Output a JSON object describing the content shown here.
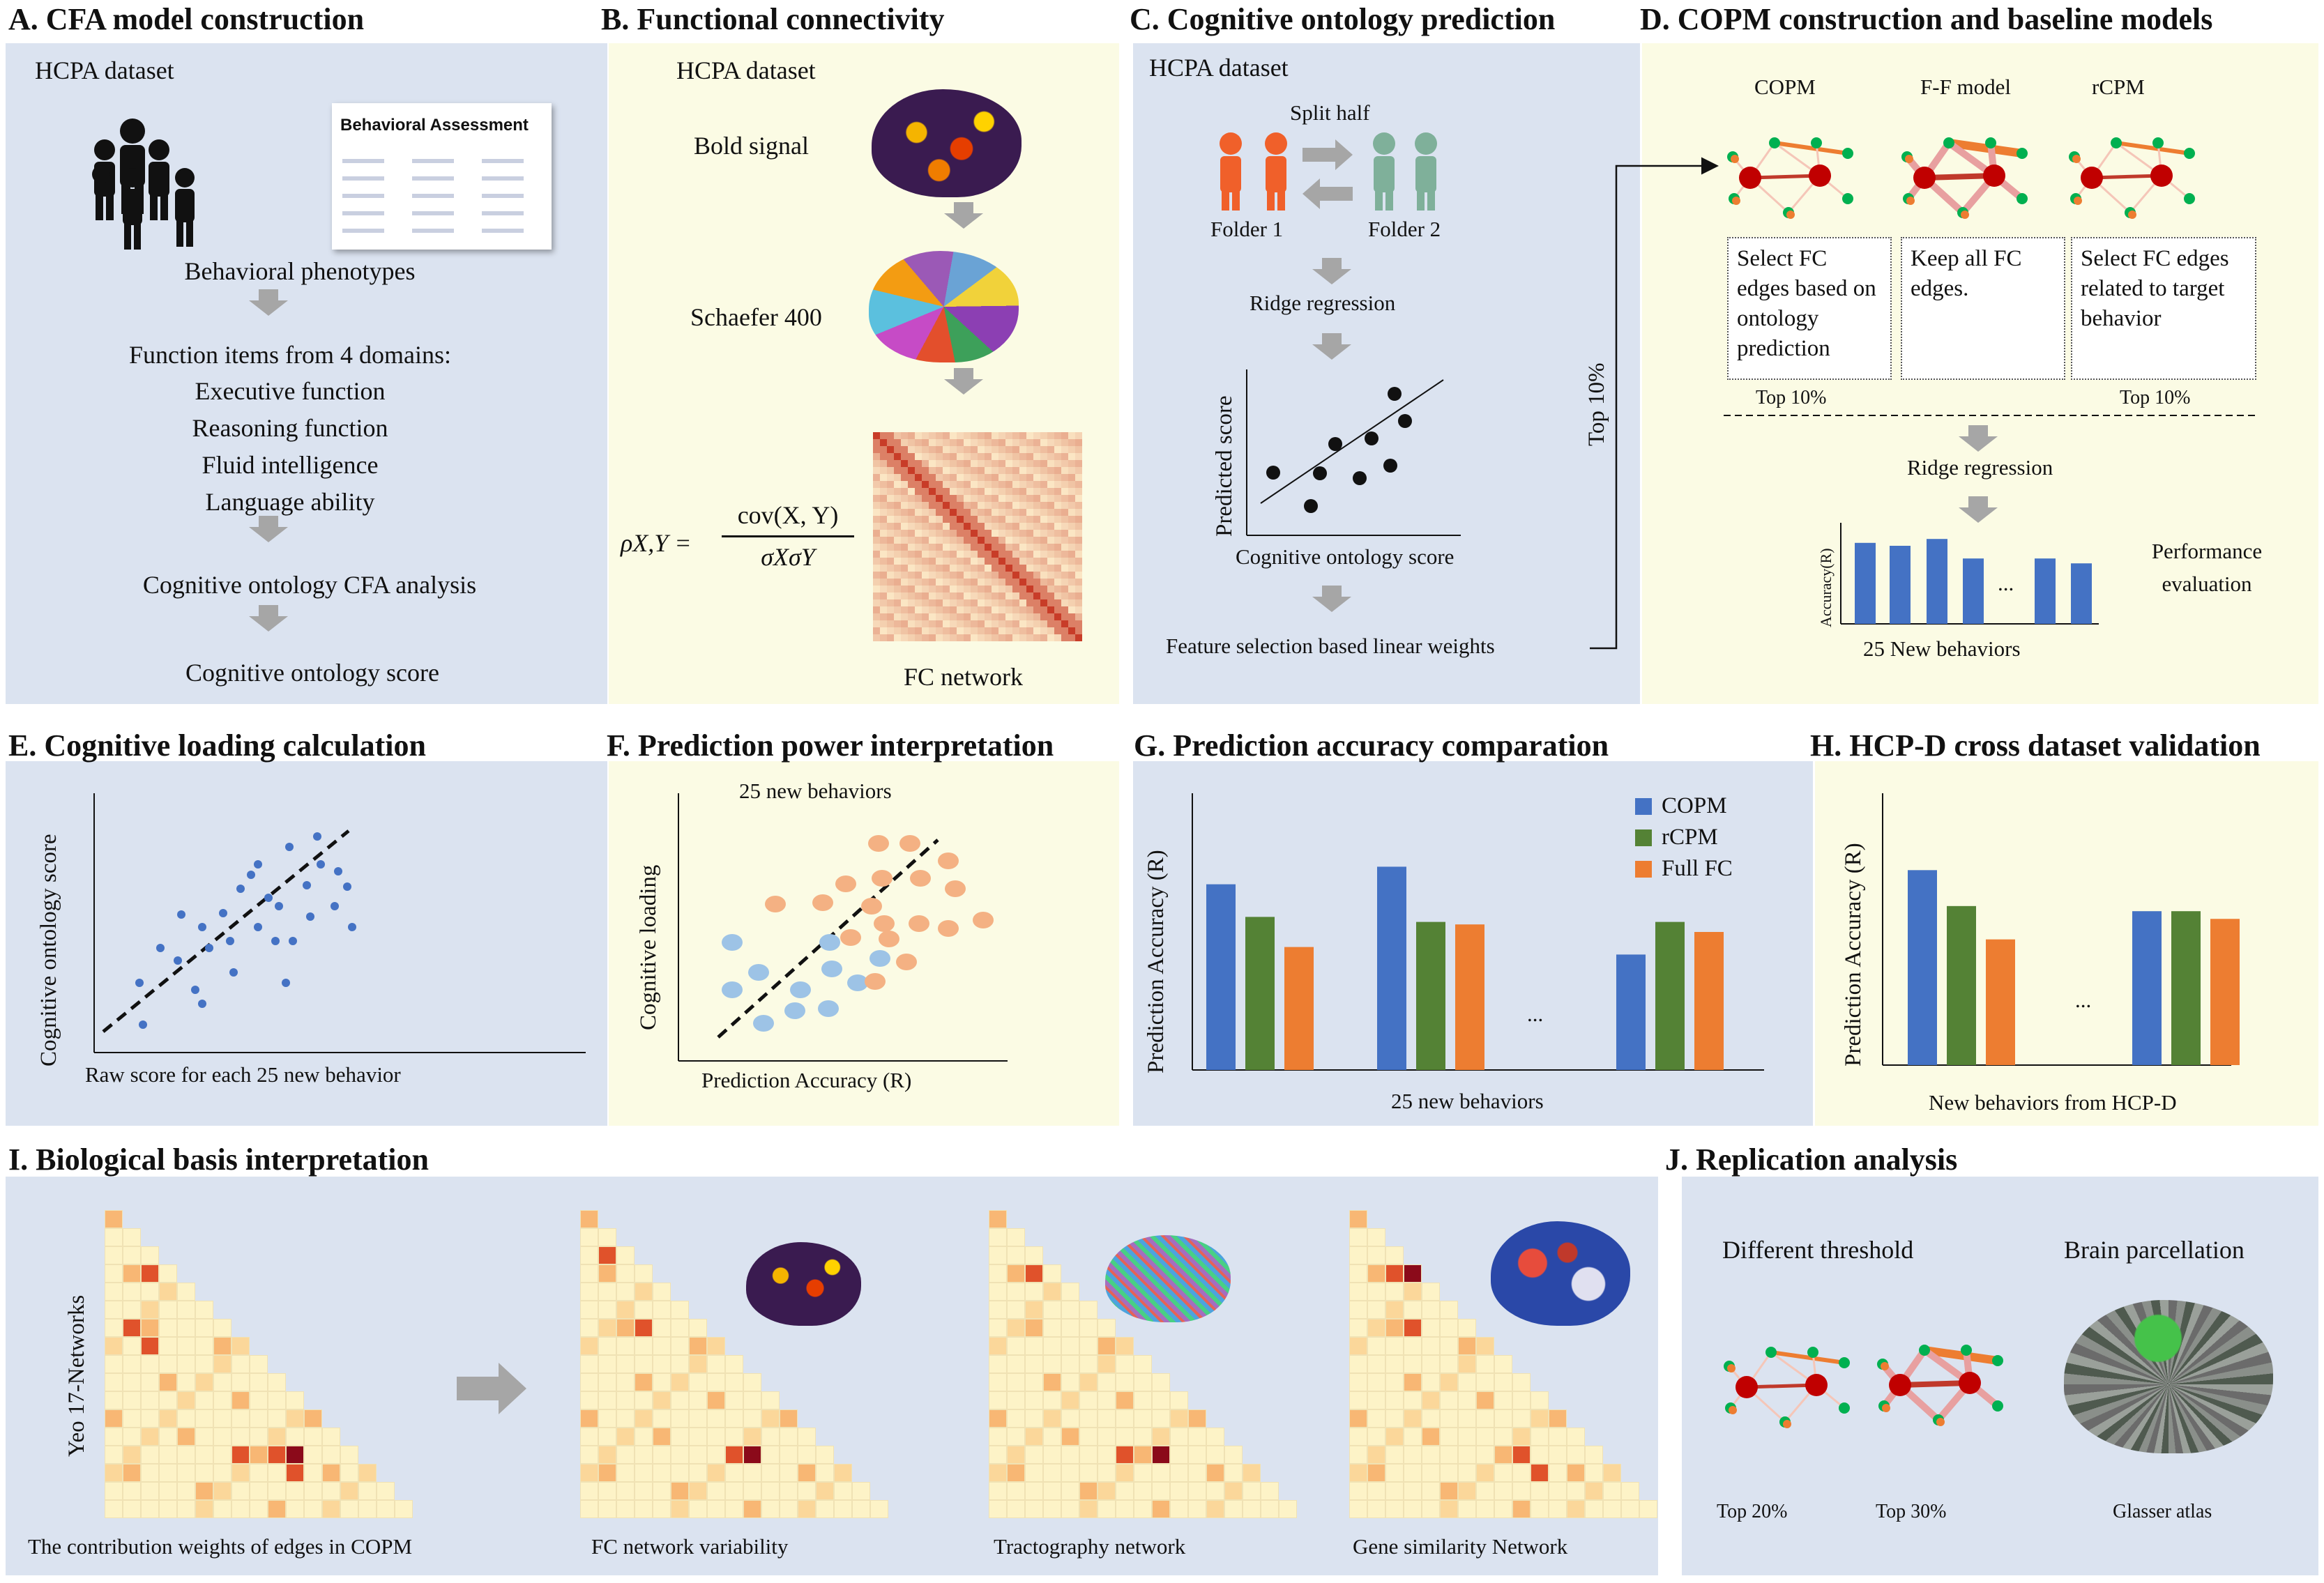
{
  "panels": {
    "a": {
      "title": "A.  CFA model construction",
      "dataset": "HCPA  dataset",
      "sheet_title": "Behavioral Assessment",
      "phenotypes": "Behavioral phenotypes",
      "items_heading": "Function items from 4 domains:",
      "domains": [
        "Executive function",
        "Reasoning function",
        "Fluid intelligence",
        "Language ability"
      ],
      "cfa": "Cognitive ontology CFA analysis",
      "score": "Cognitive ontology score"
    },
    "b": {
      "title": "B. Functional connectivity",
      "dataset": "HCPA  dataset",
      "bold": "Bold signal",
      "schaefer": "Schaefer 400",
      "fc": "FC network",
      "formula_lhs": "ρX,Y =",
      "formula_num": "cov(X, Y)",
      "formula_den": "σXσY"
    },
    "c": {
      "title": "C. Cognitive ontology prediction",
      "dataset": "HCPA  dataset",
      "split": "Split half",
      "folder1": "Folder 1",
      "folder2": "Folder 2",
      "ridge": "Ridge regression",
      "ylabel": "Predicted score",
      "xlabel": "Cognitive ontology score",
      "feature": "Feature selection based linear weights",
      "top": "Top 10%"
    },
    "d": {
      "title": "D. COPM construction and baseline models",
      "models": [
        "COPM",
        "F-F model",
        "rCPM"
      ],
      "boxes": [
        "Select FC edges based on ontology prediction",
        "Keep all FC edges.",
        "Select FC edges related to target behavior"
      ],
      "top_left": "Top 10%",
      "top_right": "Top 10%",
      "ridge": "Ridge regression",
      "acc": "Accuracy(R)",
      "dots": "...",
      "perf": "Performance evaluation",
      "new": "25 New behaviors"
    },
    "e": {
      "title": "E. Cognitive loading calculation",
      "ylabel": "Cognitive ontology score",
      "xlabel": "Raw score for each 25 new behavior"
    },
    "f": {
      "title": "F. Prediction power interpretation",
      "sub": "25 new behaviors",
      "ylabel": "Cognitive loading",
      "xlabel": "Prediction Accuracy (R)"
    },
    "g": {
      "title": "G. Prediction accuracy comparation",
      "ylabel": "Prediction  Accuracy (R)",
      "xlabel": "25 new behaviors",
      "dots": "..."
    },
    "h": {
      "title": "H. HCP-D cross dataset validation",
      "ylabel": "Prediction  Accuracy (R)",
      "xlabel": "New behaviors from HCP-D",
      "dots": "..."
    },
    "i": {
      "title": "I. Biological basis interpretation",
      "ylabel": "Yeo 17-Networks",
      "captions": [
        "The contribution weights of edges in COPM",
        "FC network variability",
        "Tractography network",
        "Gene similarity Network"
      ]
    },
    "j": {
      "title": "J. Replication analysis",
      "threshold": "Different threshold",
      "parcellation": "Brain parcellation",
      "top20": "Top 20%",
      "top30": "Top 30%",
      "glasser": "Glasser atlas"
    }
  },
  "colors": {
    "copm": "#4472c4",
    "rcpm": "#548235",
    "full_fc": "#ed7d31",
    "node_red": "#c00000",
    "node_green": "#00b050",
    "edge_orange": "#ed7d31",
    "arrow_gray": "#a6a6a6",
    "panel_blue": "#dbe3f0",
    "panel_yellow": "#fbfbe4"
  },
  "chart_data": [
    {
      "id": "g",
      "type": "bar",
      "series": [
        {
          "name": "COPM",
          "values": [
            0.74,
            0.81,
            0.46
          ]
        },
        {
          "name": "rCPM",
          "values": [
            0.61,
            0.59,
            0.59
          ]
        },
        {
          "name": "Full FC",
          "values": [
            0.49,
            0.58,
            0.55
          ]
        }
      ],
      "categories": [
        "",
        "",
        ""
      ],
      "legend": "top-right",
      "xlabel": "25 new behaviors",
      "ylabel": "Prediction  Accuracy (R)",
      "ylim": [
        0,
        1
      ]
    },
    {
      "id": "h",
      "type": "bar",
      "series": [
        {
          "values": [
            0.76,
            0.6
          ]
        },
        {
          "values": [
            0.62,
            0.6
          ]
        },
        {
          "values": [
            0.49,
            0.57
          ]
        }
      ],
      "categories": [
        "",
        ""
      ],
      "xlabel": "New behaviors from HCP-D",
      "ylabel": "Prediction  Accuracy (R)",
      "ylim": [
        0,
        1
      ]
    },
    {
      "id": "d",
      "type": "bar",
      "values": [
        0.83,
        0.8,
        0.87,
        0.67,
        0.67,
        0.62
      ],
      "categories": [
        "",
        "",
        "",
        "",
        "",
        ""
      ],
      "xlabel": "25 New behaviors",
      "ylabel": "Accuracy(R)",
      "ylim": [
        0,
        1
      ]
    }
  ],
  "legend_g": [
    "COPM",
    "rCPM",
    "Full FC"
  ]
}
